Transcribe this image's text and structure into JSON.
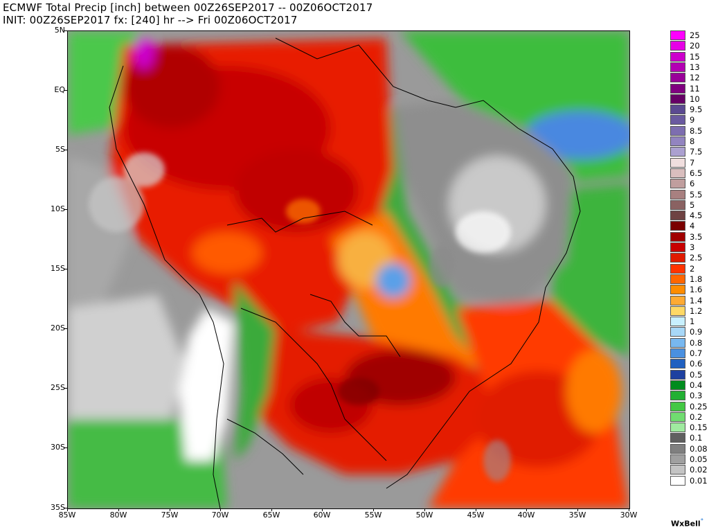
{
  "title": {
    "line1": "ECMWF Total Precip [inch] between 00Z26SEP2017 -- 00Z06OCT2017",
    "line2": "INIT: 00Z26SEP2017 fx: [240] hr --> Fri 00Z06OCT2017"
  },
  "axes": {
    "lat_labels": [
      "5N",
      "EQ",
      "5S",
      "10S",
      "15S",
      "20S",
      "25S",
      "30S",
      "35S"
    ],
    "lon_labels": [
      "85W",
      "80W",
      "75W",
      "70W",
      "65W",
      "60W",
      "55W",
      "50W",
      "45W",
      "40W",
      "35W",
      "30W"
    ]
  },
  "legend": {
    "entries": [
      {
        "label": "25",
        "color": "#ff00ff"
      },
      {
        "label": "20",
        "color": "#e600e6"
      },
      {
        "label": "15",
        "color": "#cc00cc"
      },
      {
        "label": "13",
        "color": "#b300b3"
      },
      {
        "label": "12",
        "color": "#990099"
      },
      {
        "label": "11",
        "color": "#800080"
      },
      {
        "label": "10",
        "color": "#660066"
      },
      {
        "label": "9.5",
        "color": "#5b4a91"
      },
      {
        "label": "9",
        "color": "#6a5aa0"
      },
      {
        "label": "8.5",
        "color": "#7d6eb0"
      },
      {
        "label": "8",
        "color": "#9284c0"
      },
      {
        "label": "7.5",
        "color": "#aba0d0"
      },
      {
        "label": "7",
        "color": "#f0dede"
      },
      {
        "label": "6.5",
        "color": "#d9bebe"
      },
      {
        "label": "6",
        "color": "#c09e9e"
      },
      {
        "label": "5.5",
        "color": "#a88080"
      },
      {
        "label": "5",
        "color": "#8a6262"
      },
      {
        "label": "4.5",
        "color": "#6e4242"
      },
      {
        "label": "4",
        "color": "#7a0000"
      },
      {
        "label": "3.5",
        "color": "#a00000"
      },
      {
        "label": "3",
        "color": "#c80000"
      },
      {
        "label": "2.5",
        "color": "#e01a00"
      },
      {
        "label": "2",
        "color": "#ff3300"
      },
      {
        "label": "1.8",
        "color": "#ff6600"
      },
      {
        "label": "1.6",
        "color": "#ff8c00"
      },
      {
        "label": "1.4",
        "color": "#ffaa33"
      },
      {
        "label": "1.2",
        "color": "#ffd966"
      },
      {
        "label": "1",
        "color": "#c8f0ff"
      },
      {
        "label": "0.9",
        "color": "#a8d8f8"
      },
      {
        "label": "0.8",
        "color": "#78b8f0"
      },
      {
        "label": "0.7",
        "color": "#4a90e0"
      },
      {
        "label": "0.6",
        "color": "#2060c0"
      },
      {
        "label": "0.5",
        "color": "#1e40a0"
      },
      {
        "label": "0.4",
        "color": "#008c1e"
      },
      {
        "label": "0.3",
        "color": "#22b033"
      },
      {
        "label": "0.25",
        "color": "#44c844"
      },
      {
        "label": "0.2",
        "color": "#70dc70"
      },
      {
        "label": "0.15",
        "color": "#a0eaa0"
      },
      {
        "label": "0.1",
        "color": "#606060"
      },
      {
        "label": "0.08",
        "color": "#808080"
      },
      {
        "label": "0.05",
        "color": "#a0a0a0"
      },
      {
        "label": "0.02",
        "color": "#c4c4c4"
      },
      {
        "label": "0.01",
        "color": "#ffffff"
      }
    ]
  },
  "brand": "WxBell"
}
